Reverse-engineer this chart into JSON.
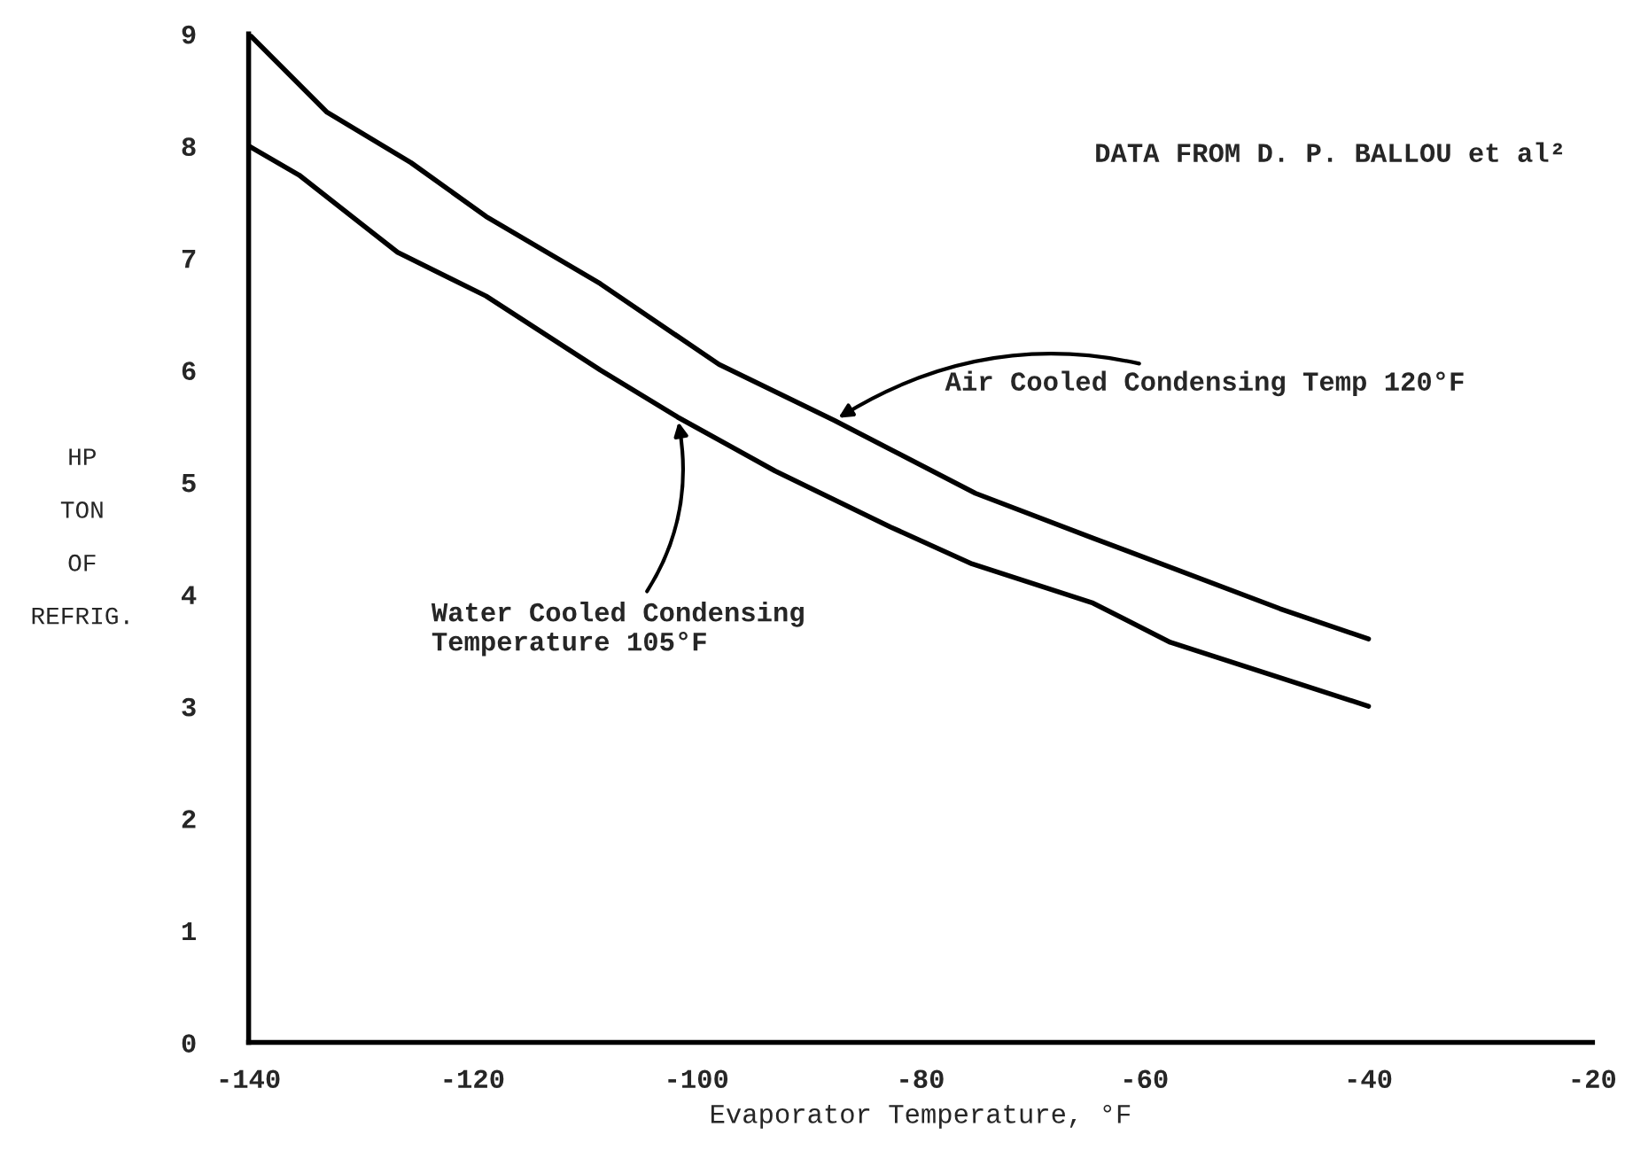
{
  "chart_data": {
    "type": "line",
    "xlabel": "Evaporator Temperature, °F",
    "ylabel": "HP\n\nTON\n\nOF\n\nREFRIG.",
    "xlim": [
      -140,
      -20
    ],
    "ylim": [
      0,
      9
    ],
    "xticks": [
      -140,
      -120,
      -100,
      -80,
      -60,
      -40,
      -20
    ],
    "yticks": [
      0,
      1,
      2,
      3,
      4,
      5,
      6,
      7,
      8,
      9
    ],
    "grid": false,
    "legend": false,
    "marker": "none",
    "line_style": "solid",
    "series": [
      {
        "color": "#000000",
        "x": [
          -140,
          -133,
          -125.5,
          -118.8,
          -108.6,
          -98,
          -87.7,
          -75.1,
          -64.6,
          -47.9,
          -40
        ],
        "values": [
          9.0,
          8.3,
          7.85,
          7.37,
          6.77,
          6.05,
          5.55,
          4.9,
          4.5,
          3.87,
          3.6
        ]
      },
      {
        "color": "#000000",
        "x": [
          -140,
          -135.5,
          -126.7,
          -118.8,
          -108.6,
          -101.7,
          -93,
          -82.7,
          -75.4,
          -64.6,
          -57.7,
          -40
        ],
        "values": [
          8.0,
          7.74,
          7.05,
          6.66,
          6.0,
          5.58,
          5.1,
          4.6,
          4.27,
          3.92,
          3.57,
          3.0
        ]
      }
    ],
    "annotations": [
      {
        "text": "Air Cooled Condensing Temp 120°F",
        "x": -87.7,
        "y": 5.55
      },
      {
        "text": "Water Cooled Condensing\nTemperature 105°F",
        "x": -101.7,
        "y": 5.58
      },
      "DATA FROM D. P. BALLOU et al²"
    ]
  }
}
